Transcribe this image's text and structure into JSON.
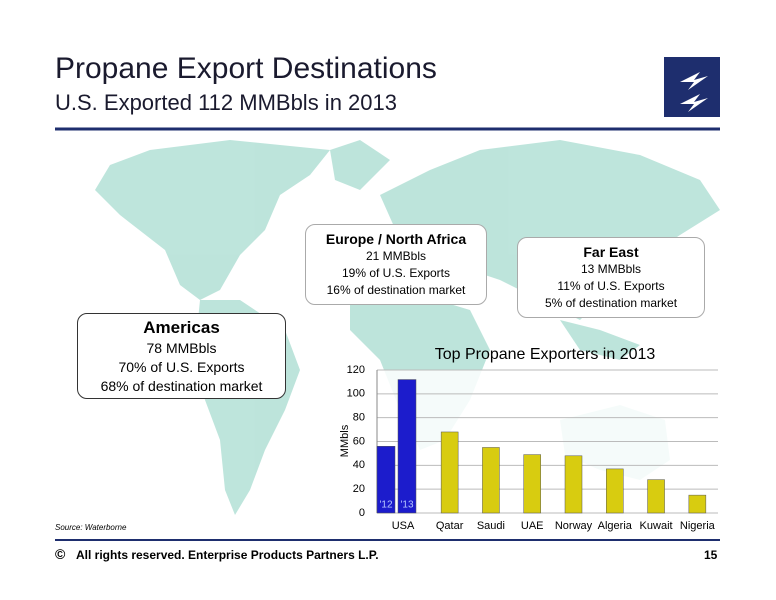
{
  "header": {
    "title": "Propane Export Destinations",
    "subtitle": "U.S. Exported 112 MMBbls in 2013"
  },
  "callouts": [
    {
      "title": "Americas",
      "lines": [
        "78 MMBbls",
        "70% of U.S. Exports",
        "68% of destination market"
      ]
    },
    {
      "title": "Europe / North Africa",
      "lines": [
        "21 MMBbls",
        "19% of U.S. Exports",
        "16% of destination market"
      ]
    },
    {
      "title": "Far East",
      "lines": [
        "13 MMBbls",
        "11% of U.S. Exports",
        "5% of destination market"
      ]
    }
  ],
  "chart_data": {
    "type": "bar",
    "title": "Top Propane Exporters in 2013",
    "y_label": "MMbls",
    "categories": [
      "USA",
      "Qatar",
      "Saudi",
      "UAE",
      "Norway",
      "Algeria",
      "Kuwait",
      "Nigeria"
    ],
    "values": [
      null,
      68,
      55,
      49,
      48,
      37,
      28,
      15
    ],
    "color": "#d8cc10",
    "usa": {
      "labels": [
        "'12",
        "'13"
      ],
      "values": [
        56,
        112
      ],
      "color": "#1c1ccc"
    },
    "ylim": [
      0,
      120
    ],
    "yticks": [
      0,
      20,
      40,
      60,
      80,
      100,
      120
    ],
    "grid": true
  },
  "source": "Source:  Waterborne",
  "footer": {
    "copyright": "©",
    "text": "All rights reserved. Enterprise Products Partners L.P.",
    "page": "15"
  }
}
